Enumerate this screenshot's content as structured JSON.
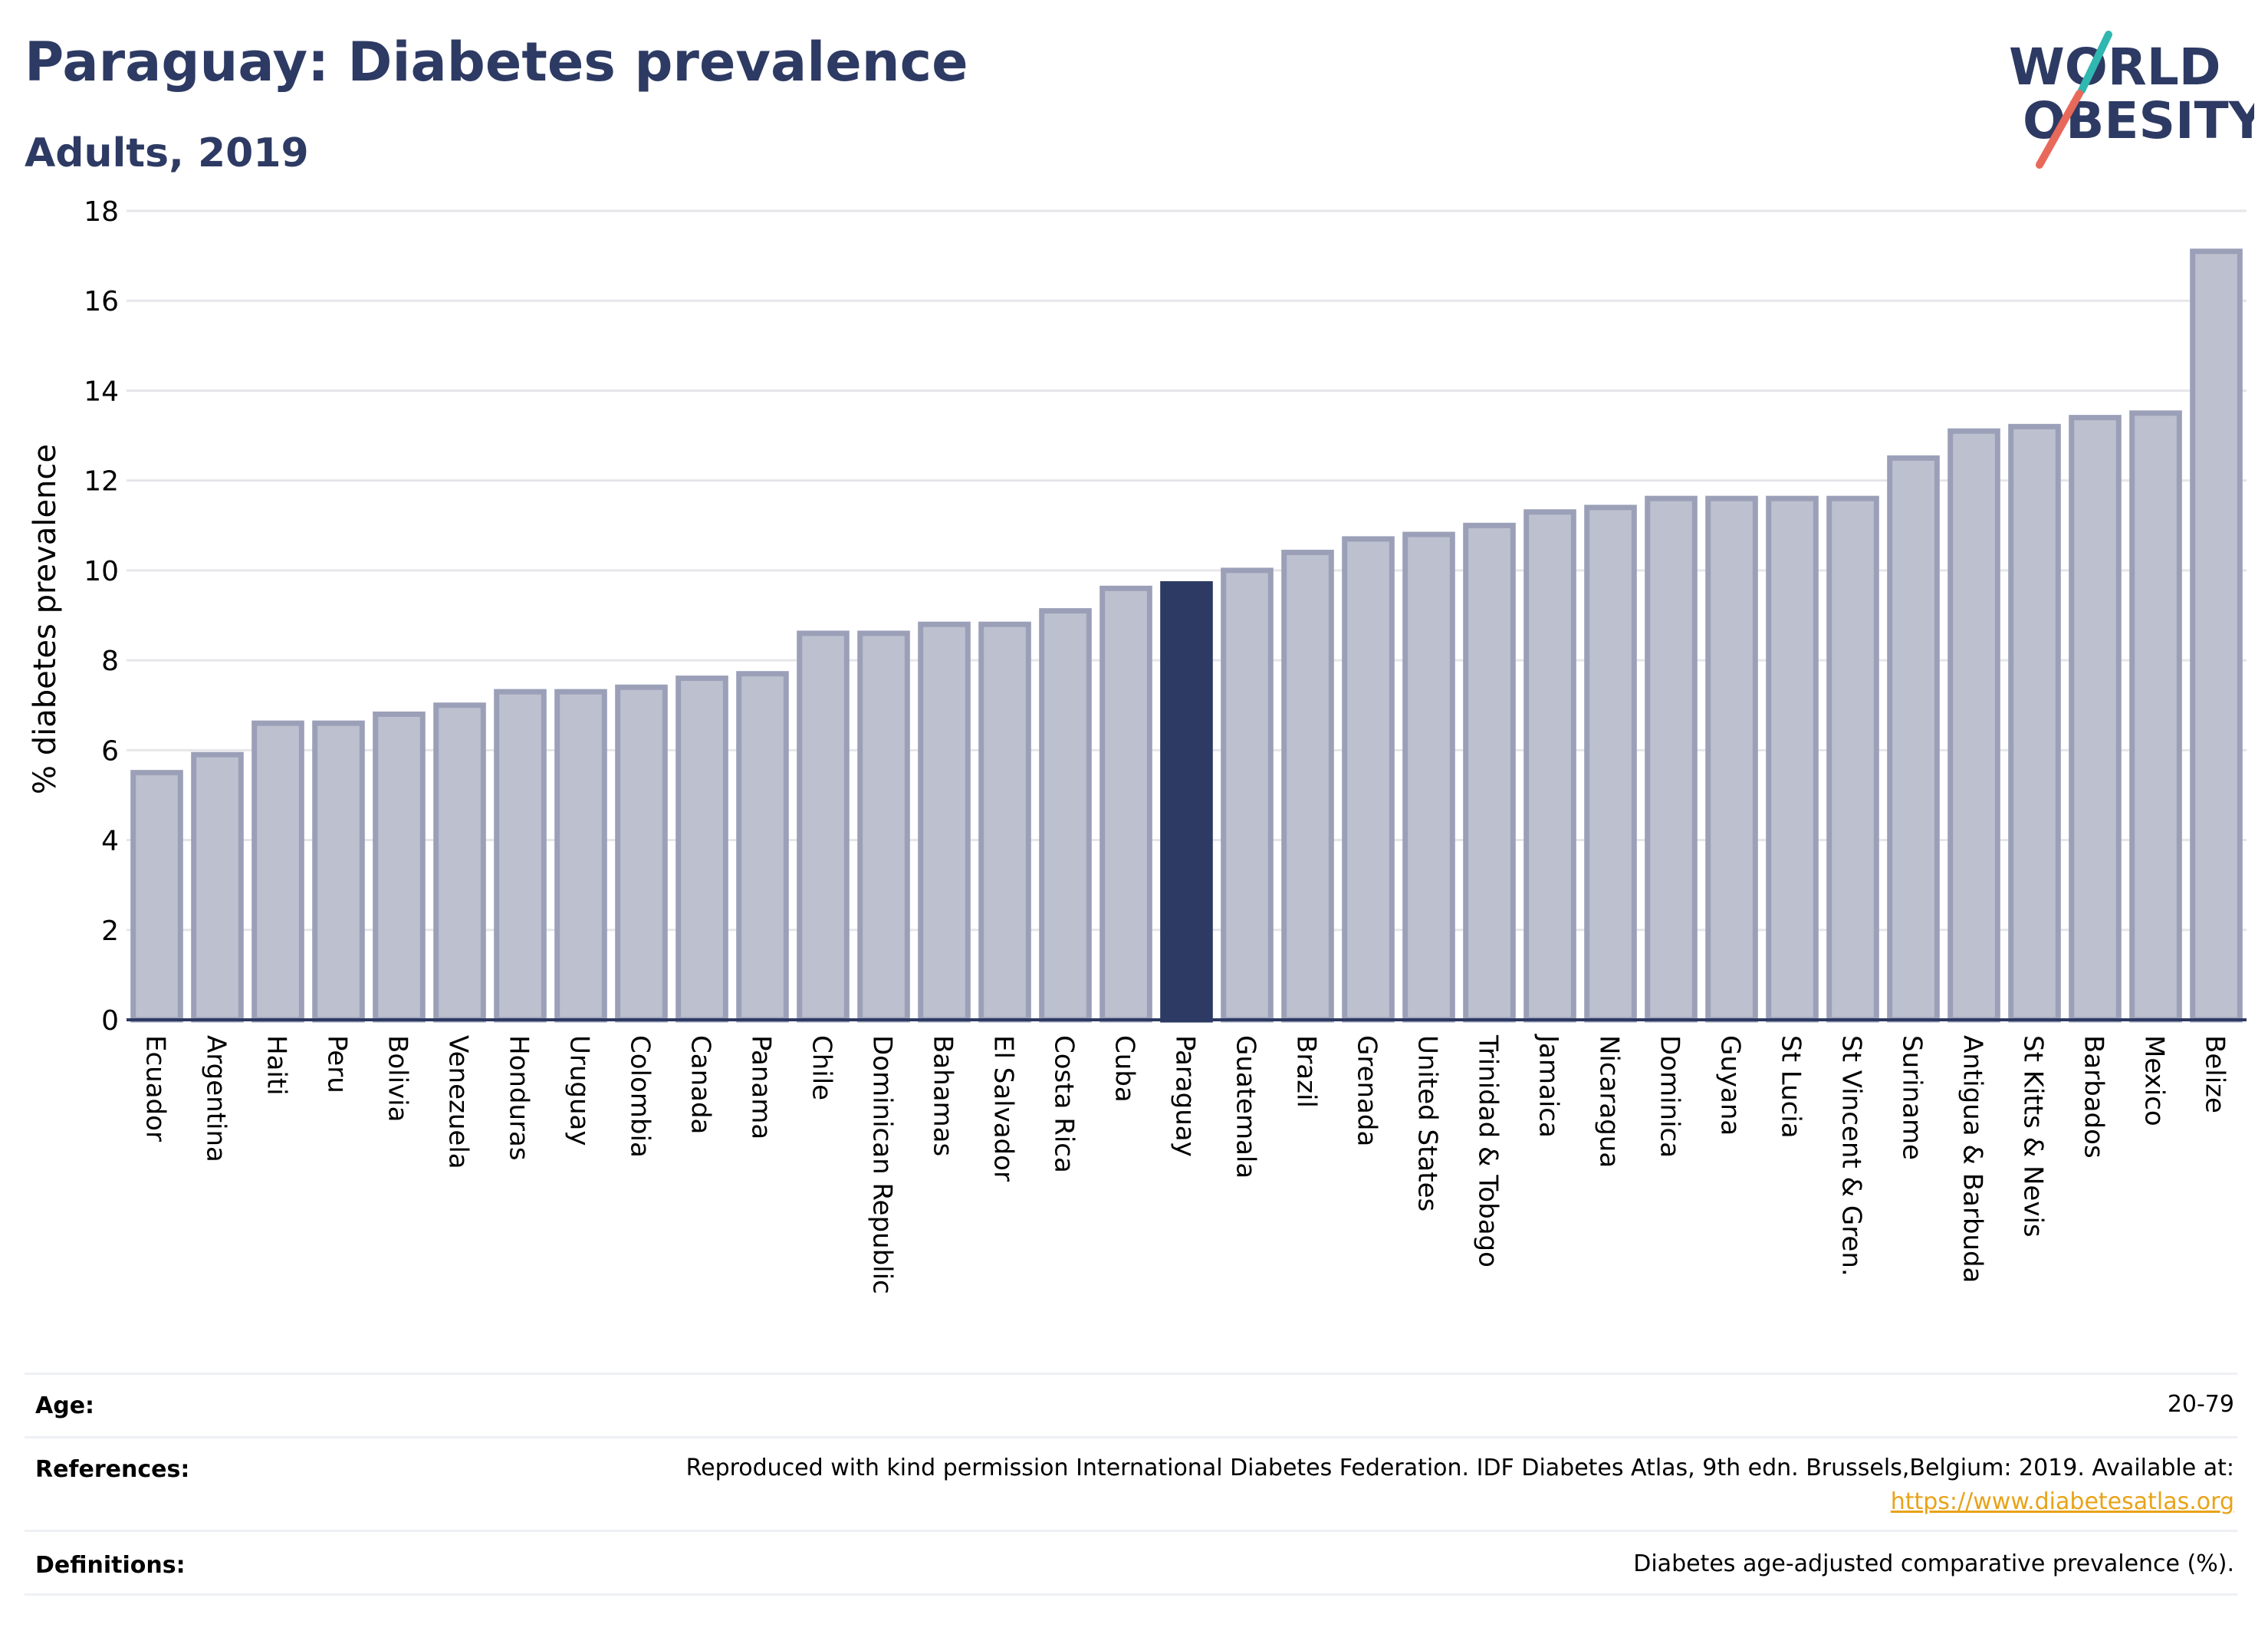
{
  "header": {
    "title": "Paraguay: Diabetes prevalence",
    "subtitle": "Adults, 2019",
    "logo_line1": "WORLD",
    "logo_line2": "OBESITY"
  },
  "colors": {
    "title": "#2d3a63",
    "bar": "#bdc0ce",
    "bar_border": "#9ba0b8",
    "highlight": "#2d3a63",
    "grid": "#e6e6ea",
    "logo_teal": "#2fb7b0",
    "logo_coral": "#e8695a",
    "link": "#e8a317"
  },
  "chart_data": {
    "type": "bar",
    "title": "Paraguay: Diabetes prevalence",
    "subtitle": "Adults, 2019",
    "xlabel": "",
    "ylabel": "% diabetes prevalence",
    "ylim": [
      0,
      18
    ],
    "yticks": [
      0,
      2,
      4,
      6,
      8,
      10,
      12,
      14,
      16,
      18
    ],
    "grid": true,
    "highlight": "Paraguay",
    "categories": [
      "Ecuador",
      "Argentina",
      "Haiti",
      "Peru",
      "Bolivia",
      "Venezuela",
      "Honduras",
      "Uruguay",
      "Colombia",
      "Canada",
      "Panama",
      "Chile",
      "Dominican Republic",
      "Bahamas",
      "El Salvador",
      "Costa Rica",
      "Cuba",
      "Paraguay",
      "Guatemala",
      "Brazil",
      "Grenada",
      "United States",
      "Trinidad & Tobago",
      "Jamaica",
      "Nicaragua",
      "Dominica",
      "Guyana",
      "St Lucia",
      "St Vincent & Gren.",
      "Suriname",
      "Antigua & Barbuda",
      "St Kitts & Nevis",
      "Barbados",
      "Mexico",
      "Belize"
    ],
    "values": [
      5.5,
      5.9,
      6.6,
      6.6,
      6.8,
      7.0,
      7.3,
      7.3,
      7.4,
      7.6,
      7.7,
      8.6,
      8.6,
      8.8,
      8.8,
      9.1,
      9.6,
      9.7,
      10.0,
      10.4,
      10.7,
      10.8,
      11.0,
      11.3,
      11.4,
      11.6,
      11.6,
      11.6,
      11.6,
      12.5,
      13.1,
      13.2,
      13.4,
      13.5,
      17.1
    ]
  },
  "footer": {
    "age_label": "Age:",
    "age_value": "20-79",
    "references_label": "References:",
    "references_text": "Reproduced with kind permission International Diabetes Federation. IDF Diabetes Atlas, 9th edn. Brussels,Belgium: 2019. Available at:",
    "references_link": "https://www.diabetesatlas.org",
    "definitions_label": "Definitions:",
    "definitions_value": "Diabetes age-adjusted comparative prevalence (%)."
  }
}
